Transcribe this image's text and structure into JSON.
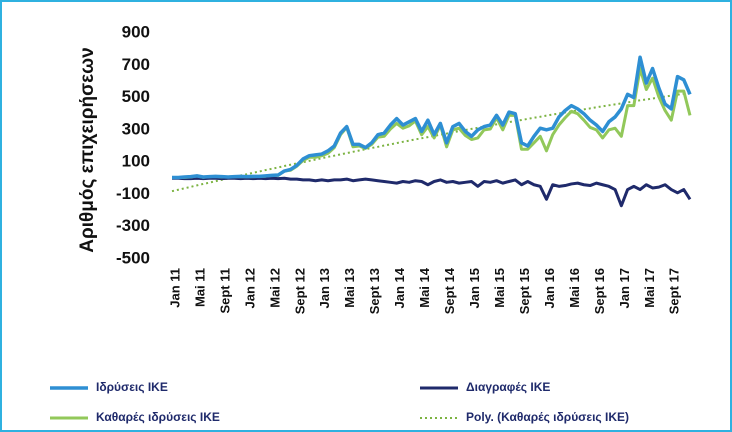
{
  "chart_data": {
    "type": "line",
    "y_label": "Αριθμός επιχειρήσεων",
    "categories": [
      "Jan 11",
      null,
      null,
      null,
      "Mai 11",
      null,
      null,
      null,
      "Sept 11",
      null,
      null,
      null,
      "Jan 12",
      null,
      null,
      null,
      "Mai 12",
      null,
      null,
      null,
      "Sept 12",
      null,
      null,
      null,
      "Jan 13",
      null,
      null,
      null,
      "Mai 13",
      null,
      null,
      null,
      "Sept 13",
      null,
      null,
      null,
      "Jan 14",
      null,
      null,
      null,
      "Mai 14",
      null,
      null,
      null,
      "Sept 14",
      null,
      null,
      null,
      "Jan 15",
      null,
      null,
      null,
      "Mai 15",
      null,
      null,
      null,
      "Sept 15",
      null,
      null,
      null,
      "Jan 16",
      null,
      null,
      null,
      "Mai 16",
      null,
      null,
      null,
      "Sept 16",
      null,
      null,
      null,
      "Jan 17",
      null,
      null,
      null,
      "Mai 17",
      null,
      null,
      null,
      "Sept 17",
      null,
      null,
      null
    ],
    "ylim": [
      -500,
      900
    ],
    "yticks": [
      -500,
      -300,
      -100,
      100,
      300,
      500,
      700,
      900
    ],
    "grid": false,
    "series": [
      {
        "name": "Ιδρύσεις ΙΚΕ",
        "color": "#2e8fd3",
        "width": 3.5,
        "values": [
          5,
          5,
          8,
          10,
          15,
          8,
          10,
          12,
          10,
          8,
          10,
          12,
          10,
          12,
          12,
          15,
          18,
          20,
          45,
          55,
          80,
          120,
          140,
          145,
          150,
          170,
          200,
          280,
          320,
          210,
          210,
          190,
          220,
          270,
          280,
          330,
          370,
          330,
          350,
          370,
          290,
          360,
          270,
          340,
          220,
          320,
          340,
          290,
          260,
          300,
          320,
          330,
          390,
          330,
          410,
          400,
          220,
          200,
          260,
          310,
          300,
          310,
          380,
          420,
          450,
          430,
          400,
          360,
          330,
          290,
          350,
          380,
          430,
          520,
          500,
          750,
          590,
          680,
          560,
          460,
          430,
          630,
          610,
          520
        ]
      },
      {
        "name": "Διαγραφές ΙΚΕ",
        "color": "#1f2a6b",
        "width": 3,
        "values": [
          0,
          0,
          -2,
          -2,
          0,
          -2,
          0,
          0,
          -2,
          0,
          0,
          -2,
          0,
          -2,
          0,
          -2,
          0,
          -2,
          0,
          -5,
          -5,
          -10,
          -10,
          -15,
          -10,
          -15,
          -10,
          -10,
          -5,
          -15,
          -10,
          -5,
          -10,
          -15,
          -20,
          -25,
          -30,
          -20,
          -25,
          -15,
          -20,
          -40,
          -20,
          -10,
          -25,
          -20,
          -30,
          -25,
          -20,
          -50,
          -20,
          -25,
          -15,
          -30,
          -20,
          -10,
          -40,
          -20,
          -40,
          -50,
          -130,
          -40,
          -50,
          -45,
          -35,
          -30,
          -40,
          -45,
          -30,
          -40,
          -50,
          -70,
          -170,
          -70,
          -50,
          -70,
          -40,
          -60,
          -55,
          -40,
          -70,
          -90,
          -70,
          -130
        ]
      },
      {
        "name": "Καθαρές ιδρύσεις ΙΚΕ",
        "color": "#92c85a",
        "width": 3,
        "values": [
          5,
          5,
          6,
          8,
          15,
          6,
          10,
          12,
          8,
          8,
          10,
          10,
          10,
          10,
          12,
          13,
          18,
          18,
          45,
          50,
          75,
          110,
          130,
          130,
          140,
          155,
          190,
          270,
          315,
          195,
          200,
          185,
          210,
          255,
          260,
          305,
          340,
          310,
          325,
          355,
          270,
          320,
          250,
          330,
          195,
          300,
          310,
          265,
          240,
          250,
          300,
          305,
          375,
          300,
          390,
          390,
          180,
          180,
          220,
          260,
          170,
          270,
          330,
          375,
          415,
          400,
          360,
          315,
          300,
          250,
          300,
          310,
          260,
          450,
          450,
          680,
          550,
          620,
          505,
          420,
          360,
          540,
          540,
          390
        ]
      },
      {
        "name": "Poly. (Καθαρές ιδρύσεις ΙΚΕ)",
        "color": "#7cb342",
        "width": 2,
        "dash": "2 3",
        "values": [
          -80,
          -71,
          -62,
          -53,
          -44,
          -35,
          -27,
          -18,
          -9,
          -1,
          8,
          17,
          25,
          34,
          42,
          51,
          59,
          67,
          76,
          84,
          92,
          100,
          108,
          116,
          124,
          133,
          140,
          148,
          156,
          164,
          172,
          180,
          188,
          195,
          203,
          210,
          218,
          226,
          233,
          241,
          248,
          255,
          263,
          270,
          277,
          285,
          292,
          299,
          306,
          313,
          320,
          327,
          334,
          341,
          348,
          355,
          361,
          368,
          375,
          381,
          388,
          395,
          401,
          408,
          414,
          421,
          427,
          433,
          440,
          446,
          452,
          458,
          464,
          470,
          476,
          483,
          488,
          494,
          500,
          506,
          512,
          518,
          524,
          529
        ]
      }
    ]
  }
}
